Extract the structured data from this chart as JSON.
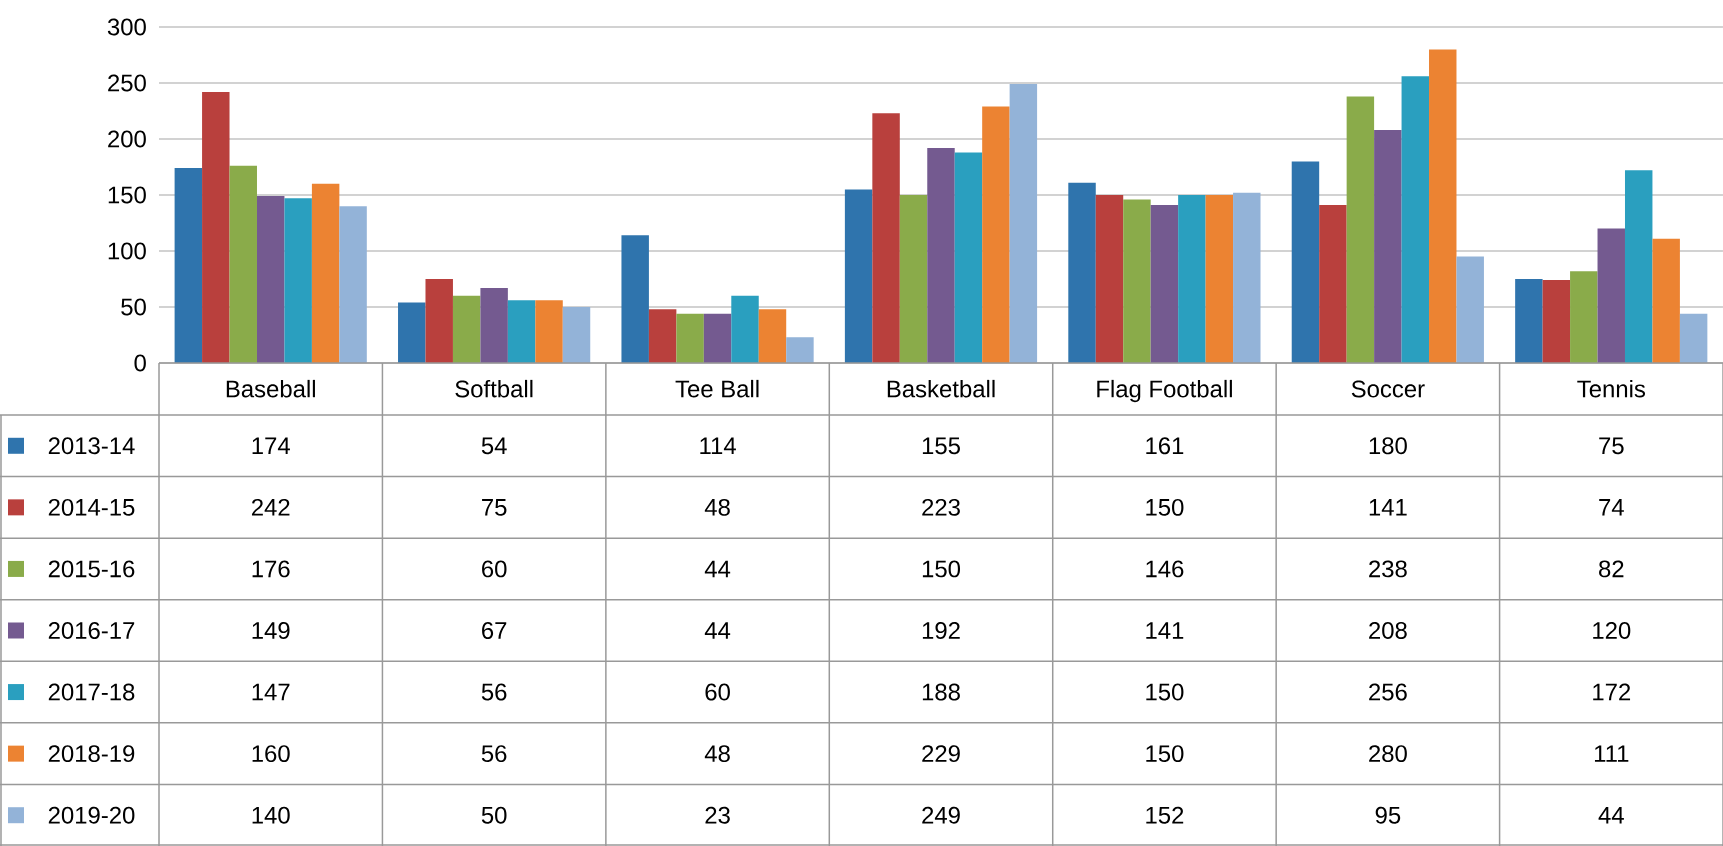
{
  "chart_data": {
    "type": "bar",
    "categories": [
      "Baseball",
      "Softball",
      "Tee Ball",
      "Basketball",
      "Flag Football",
      "Soccer",
      "Tennis"
    ],
    "series": [
      {
        "name": "2013-14",
        "color": "#2f74ad",
        "values": [
          174,
          54,
          114,
          155,
          161,
          180,
          75
        ]
      },
      {
        "name": "2014-15",
        "color": "#b9403d",
        "values": [
          242,
          75,
          48,
          223,
          150,
          141,
          74
        ]
      },
      {
        "name": "2015-16",
        "color": "#8aab4a",
        "values": [
          176,
          60,
          44,
          150,
          146,
          238,
          82
        ]
      },
      {
        "name": "2016-17",
        "color": "#745a90",
        "values": [
          149,
          67,
          44,
          192,
          141,
          208,
          120
        ]
      },
      {
        "name": "2017-18",
        "color": "#2a9fbf",
        "values": [
          147,
          56,
          60,
          188,
          150,
          256,
          172
        ]
      },
      {
        "name": "2018-19",
        "color": "#ec8332",
        "values": [
          160,
          56,
          48,
          229,
          150,
          280,
          111
        ]
      },
      {
        "name": "2019-20",
        "color": "#93b3d8",
        "values": [
          140,
          50,
          23,
          249,
          152,
          95,
          44
        ]
      }
    ],
    "ylim": [
      0,
      300
    ],
    "yticks": [
      0,
      50,
      100,
      150,
      200,
      250,
      300
    ],
    "grid": "y",
    "legend": "bottom",
    "data_labels": true
  }
}
